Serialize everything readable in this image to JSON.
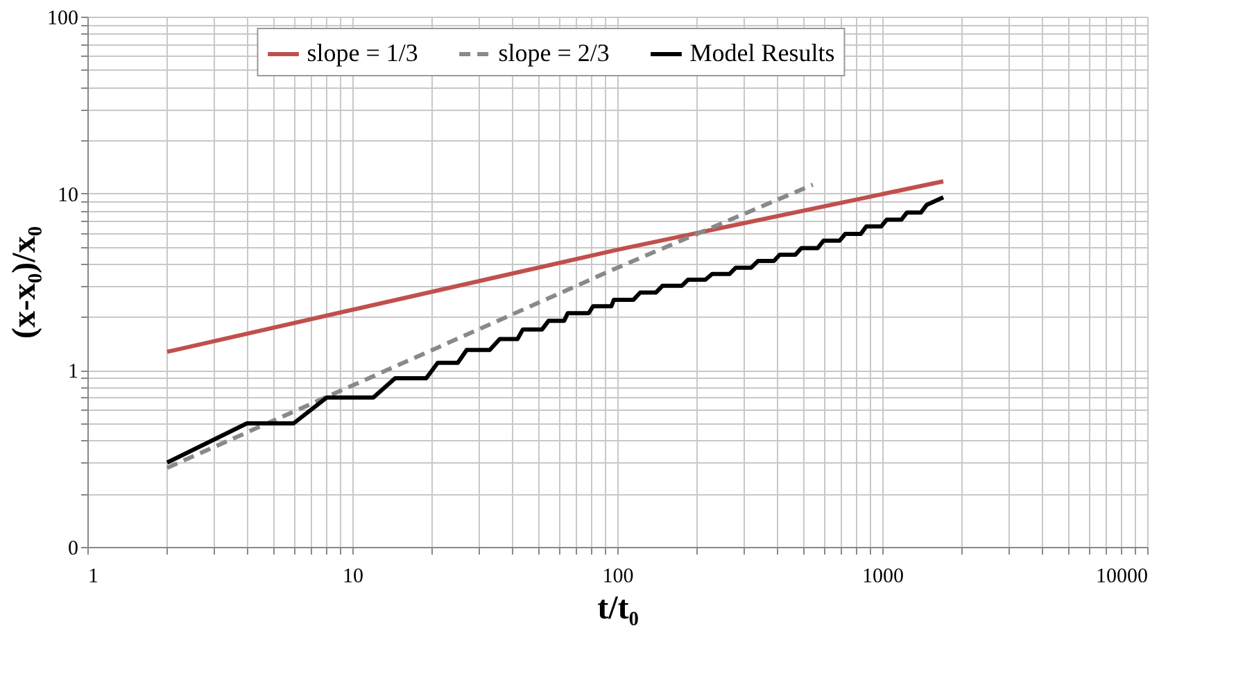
{
  "chart_data": {
    "type": "line",
    "xlabel": "t/t₀",
    "ylabel": "(x-x₀)/x₀",
    "log": "xy",
    "grid": true,
    "legend": "top",
    "xlim": [
      1,
      10000
    ],
    "ylim": [
      0.1,
      100
    ],
    "xticks": [
      1,
      {
        "value": 2,
        "label": null
      },
      {
        "value": 3,
        "label": null
      },
      {
        "value": 4,
        "label": null
      },
      {
        "value": 5,
        "label": null
      },
      {
        "value": 6,
        "label": null
      },
      {
        "value": 7,
        "label": null
      },
      {
        "value": 8,
        "label": null
      },
      {
        "value": 9,
        "label": null
      },
      10,
      {
        "value": 20,
        "label": null
      },
      {
        "value": 30,
        "label": null
      },
      {
        "value": 40,
        "label": null
      },
      {
        "value": 50,
        "label": null
      },
      {
        "value": 60,
        "label": null
      },
      {
        "value": 70,
        "label": null
      },
      {
        "value": 80,
        "label": null
      },
      {
        "value": 90,
        "label": null
      },
      100,
      {
        "value": 200,
        "label": null
      },
      {
        "value": 300,
        "label": null
      },
      {
        "value": 400,
        "label": null
      },
      {
        "value": 500,
        "label": null
      },
      {
        "value": 600,
        "label": null
      },
      {
        "value": 700,
        "label": null
      },
      {
        "value": 800,
        "label": null
      },
      {
        "value": 900,
        "label": null
      },
      1000,
      {
        "value": 2000,
        "label": null
      },
      {
        "value": 3000,
        "label": null
      },
      {
        "value": 4000,
        "label": null
      },
      {
        "value": 5000,
        "label": null
      },
      {
        "value": 6000,
        "label": null
      },
      {
        "value": 7000,
        "label": null
      },
      {
        "value": 8000,
        "label": null
      },
      {
        "value": 9000,
        "label": null
      },
      10000
    ],
    "yticks": [
      {
        "value": 0.1,
        "label": "0"
      },
      {
        "value": 0.2,
        "label": null
      },
      {
        "value": 0.3,
        "label": null
      },
      {
        "value": 0.4,
        "label": null
      },
      {
        "value": 0.5,
        "label": null
      },
      {
        "value": 0.6,
        "label": null
      },
      {
        "value": 0.7,
        "label": null
      },
      {
        "value": 0.8,
        "label": null
      },
      {
        "value": 0.9,
        "label": null
      },
      1,
      {
        "value": 2,
        "label": null
      },
      {
        "value": 3,
        "label": null
      },
      {
        "value": 4,
        "label": null
      },
      {
        "value": 5,
        "label": null
      },
      {
        "value": 6,
        "label": null
      },
      {
        "value": 7,
        "label": null
      },
      {
        "value": 8,
        "label": null
      },
      {
        "value": 9,
        "label": null
      },
      10,
      {
        "value": 20,
        "label": null
      },
      {
        "value": 30,
        "label": null
      },
      {
        "value": 40,
        "label": null
      },
      {
        "value": 50,
        "label": null
      },
      {
        "value": 60,
        "label": null
      },
      {
        "value": 70,
        "label": null
      },
      {
        "value": 80,
        "label": null
      },
      {
        "value": 90,
        "label": null
      },
      100
    ],
    "series": [
      {
        "name": "slope = 1/3",
        "color": "#c0504d",
        "line_style": "solid",
        "x": [
          2,
          100,
          1700
        ],
        "values": [
          1.27,
          4.8,
          11.7
        ]
      },
      {
        "name": "slope = 2/3",
        "color": "#898989",
        "line_style": "dashed",
        "x": [
          2,
          100,
          547
        ],
        "values": [
          0.28,
          3.8,
          11.2
        ]
      },
      {
        "name": "Model Results",
        "color": "#000000",
        "line_style": "solid",
        "x": [
          2,
          4,
          6,
          8,
          12,
          14.5,
          19,
          21,
          25,
          27,
          33,
          36,
          42,
          44,
          52,
          55,
          63,
          65,
          78,
          81,
          95,
          97,
          115,
          122,
          140,
          148,
          175,
          185,
          215,
          228,
          265,
          280,
          320,
          340,
          390,
          410,
          470,
          495,
          570,
          600,
          690,
          725,
          830,
          870,
          990,
          1040,
          1180,
          1240,
          1400,
          1470,
          1700
        ],
        "values": [
          0.3,
          0.5,
          0.5,
          0.7,
          0.7,
          0.9,
          0.9,
          1.1,
          1.1,
          1.3,
          1.3,
          1.5,
          1.5,
          1.7,
          1.7,
          1.9,
          1.9,
          2.1,
          2.1,
          2.3,
          2.3,
          2.5,
          2.5,
          2.75,
          2.75,
          3.0,
          3.0,
          3.25,
          3.25,
          3.5,
          3.5,
          3.8,
          3.8,
          4.15,
          4.15,
          4.5,
          4.5,
          4.9,
          4.9,
          5.4,
          5.4,
          5.9,
          5.9,
          6.5,
          6.5,
          7.1,
          7.1,
          7.8,
          7.8,
          8.6,
          9.5
        ]
      }
    ]
  }
}
